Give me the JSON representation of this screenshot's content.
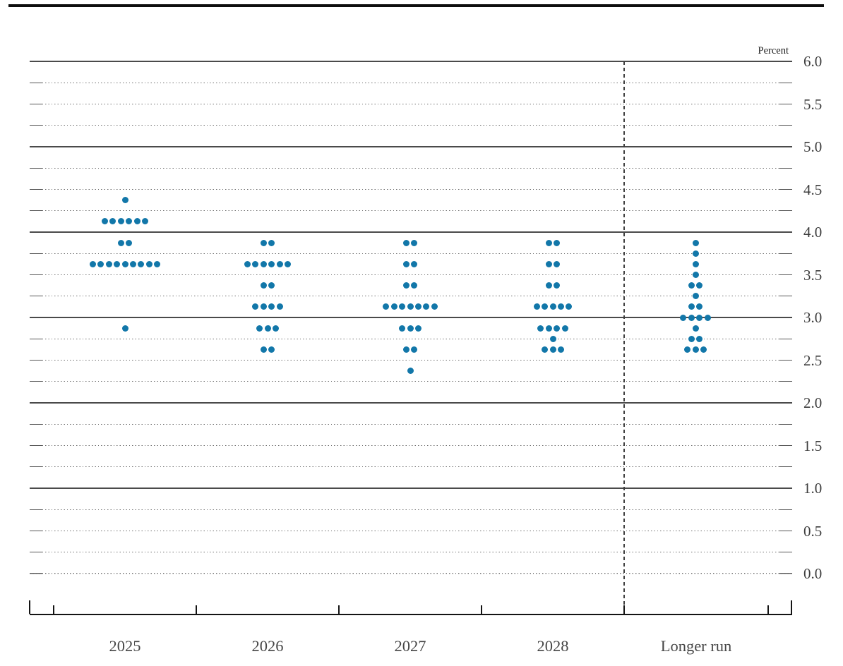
{
  "chart_data": {
    "type": "scatter",
    "subtype": "fomc-dot-plot",
    "units_label": "Percent",
    "ylim": [
      0.0,
      6.0
    ],
    "grid_step": 0.25,
    "label_step": 0.5,
    "ytick_labels": [
      "6.0",
      "5.5",
      "5.0",
      "4.5",
      "4.0",
      "3.5",
      "3.0",
      "2.5",
      "2.0",
      "1.5",
      "1.0",
      "0.5",
      "0.0"
    ],
    "solid_lines_at": [
      1.0,
      2.0,
      3.0,
      4.0,
      5.0,
      6.0
    ],
    "categories": [
      "2025",
      "2026",
      "2027",
      "2028",
      "Longer run"
    ],
    "separator_before_category": "Longer run",
    "dot_color": "#1277a9",
    "series": [
      {
        "label": "2025",
        "dots": [
          [
            4.375,
            1
          ],
          [
            4.125,
            6
          ],
          [
            3.875,
            2
          ],
          [
            3.625,
            9
          ],
          [
            2.875,
            1
          ]
        ]
      },
      {
        "label": "2026",
        "dots": [
          [
            3.875,
            2
          ],
          [
            3.625,
            6
          ],
          [
            3.375,
            2
          ],
          [
            3.125,
            4
          ],
          [
            2.875,
            3
          ],
          [
            2.625,
            2
          ]
        ]
      },
      {
        "label": "2027",
        "dots": [
          [
            3.875,
            2
          ],
          [
            3.625,
            2
          ],
          [
            3.375,
            2
          ],
          [
            3.125,
            7
          ],
          [
            2.875,
            3
          ],
          [
            2.625,
            2
          ],
          [
            2.375,
            1
          ]
        ]
      },
      {
        "label": "2028",
        "dots": [
          [
            3.875,
            2
          ],
          [
            3.625,
            2
          ],
          [
            3.375,
            2
          ],
          [
            3.125,
            5
          ],
          [
            2.875,
            4
          ],
          [
            2.75,
            1
          ],
          [
            2.625,
            3
          ]
        ]
      },
      {
        "label": "Longer run",
        "dots": [
          [
            3.875,
            1
          ],
          [
            3.75,
            1
          ],
          [
            3.625,
            1
          ],
          [
            3.5,
            1
          ],
          [
            3.375,
            2
          ],
          [
            3.25,
            1
          ],
          [
            3.125,
            2
          ],
          [
            3.0,
            4
          ],
          [
            2.875,
            1
          ],
          [
            2.75,
            2
          ],
          [
            2.625,
            3
          ]
        ]
      }
    ]
  }
}
